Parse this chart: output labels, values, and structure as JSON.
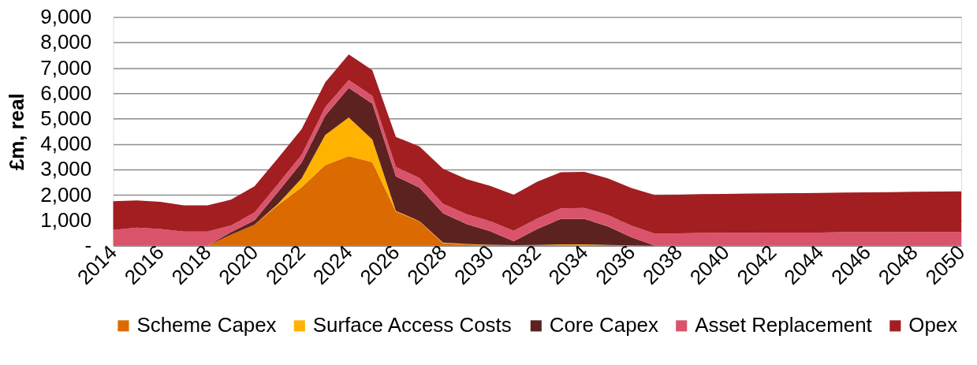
{
  "chart_data": {
    "type": "area",
    "stacked": true,
    "ylabel": "£m, real",
    "x": [
      2014,
      2015,
      2016,
      2017,
      2018,
      2019,
      2020,
      2021,
      2022,
      2023,
      2024,
      2025,
      2026,
      2027,
      2028,
      2029,
      2030,
      2031,
      2032,
      2033,
      2034,
      2035,
      2036,
      2037,
      2038,
      2039,
      2040,
      2041,
      2042,
      2043,
      2044,
      2045,
      2046,
      2047,
      2048,
      2049,
      2050
    ],
    "xlim": [
      2014,
      2050
    ],
    "xticks": [
      2014,
      2016,
      2018,
      2020,
      2022,
      2024,
      2026,
      2028,
      2030,
      2032,
      2034,
      2036,
      2038,
      2040,
      2042,
      2044,
      2046,
      2048,
      2050
    ],
    "ylim": [
      0,
      9000
    ],
    "yticks": [
      {
        "value": 0,
        "label": "-"
      },
      {
        "value": 1000,
        "label": "1,000"
      },
      {
        "value": 2000,
        "label": "2,000"
      },
      {
        "value": 3000,
        "label": "3,000"
      },
      {
        "value": 4000,
        "label": "4,000"
      },
      {
        "value": 5000,
        "label": "5,000"
      },
      {
        "value": 6000,
        "label": "6,000"
      },
      {
        "value": 7000,
        "label": "7,000"
      },
      {
        "value": 8000,
        "label": "8,000"
      },
      {
        "value": 9000,
        "label": "9,000"
      }
    ],
    "grid": "y",
    "legend": "bottom",
    "series": [
      {
        "name": "Scheme Capex",
        "color": "#db6a00",
        "values": [
          0,
          0,
          0,
          0,
          0,
          430,
          830,
          1600,
          2300,
          3170,
          3530,
          3290,
          1350,
          950,
          100,
          50,
          30,
          10,
          20,
          30,
          30,
          20,
          10,
          0,
          0,
          0,
          0,
          0,
          0,
          0,
          0,
          0,
          0,
          0,
          0,
          0,
          0
        ]
      },
      {
        "name": "Surface Access Costs",
        "color": "#ffb300",
        "values": [
          0,
          0,
          0,
          0,
          0,
          0,
          0,
          50,
          350,
          1190,
          1520,
          890,
          20,
          20,
          20,
          20,
          10,
          10,
          10,
          20,
          20,
          10,
          0,
          0,
          0,
          0,
          0,
          0,
          0,
          0,
          0,
          0,
          0,
          0,
          0,
          0,
          0
        ]
      },
      {
        "name": "Core Capex",
        "color": "#5c2220",
        "values": [
          0,
          0,
          0,
          0,
          0,
          100,
          170,
          470,
          620,
          760,
          1160,
          1410,
          1360,
          1320,
          1160,
          780,
          530,
          160,
          630,
          1000,
          1000,
          730,
          320,
          0,
          0,
          0,
          0,
          0,
          0,
          0,
          0,
          0,
          0,
          0,
          0,
          0,
          0
        ]
      },
      {
        "name": "Asset Replacement",
        "color": "#d9546b",
        "values": [
          620,
          710,
          660,
          560,
          560,
          270,
          310,
          310,
          310,
          330,
          310,
          310,
          370,
          380,
          370,
          390,
          400,
          410,
          410,
          420,
          440,
          450,
          460,
          470,
          490,
          500,
          510,
          510,
          520,
          520,
          520,
          530,
          530,
          530,
          540,
          540,
          540
        ]
      },
      {
        "name": "Opex",
        "color": "#a31e21",
        "values": [
          1130,
          1070,
          1070,
          1030,
          1030,
          1010,
          1030,
          1020,
          1010,
          980,
          1010,
          1010,
          1180,
          1240,
          1380,
          1380,
          1390,
          1420,
          1450,
          1420,
          1420,
          1440,
          1480,
          1520,
          1520,
          1530,
          1530,
          1540,
          1540,
          1550,
          1560,
          1560,
          1570,
          1580,
          1580,
          1590,
          1600
        ]
      }
    ]
  }
}
